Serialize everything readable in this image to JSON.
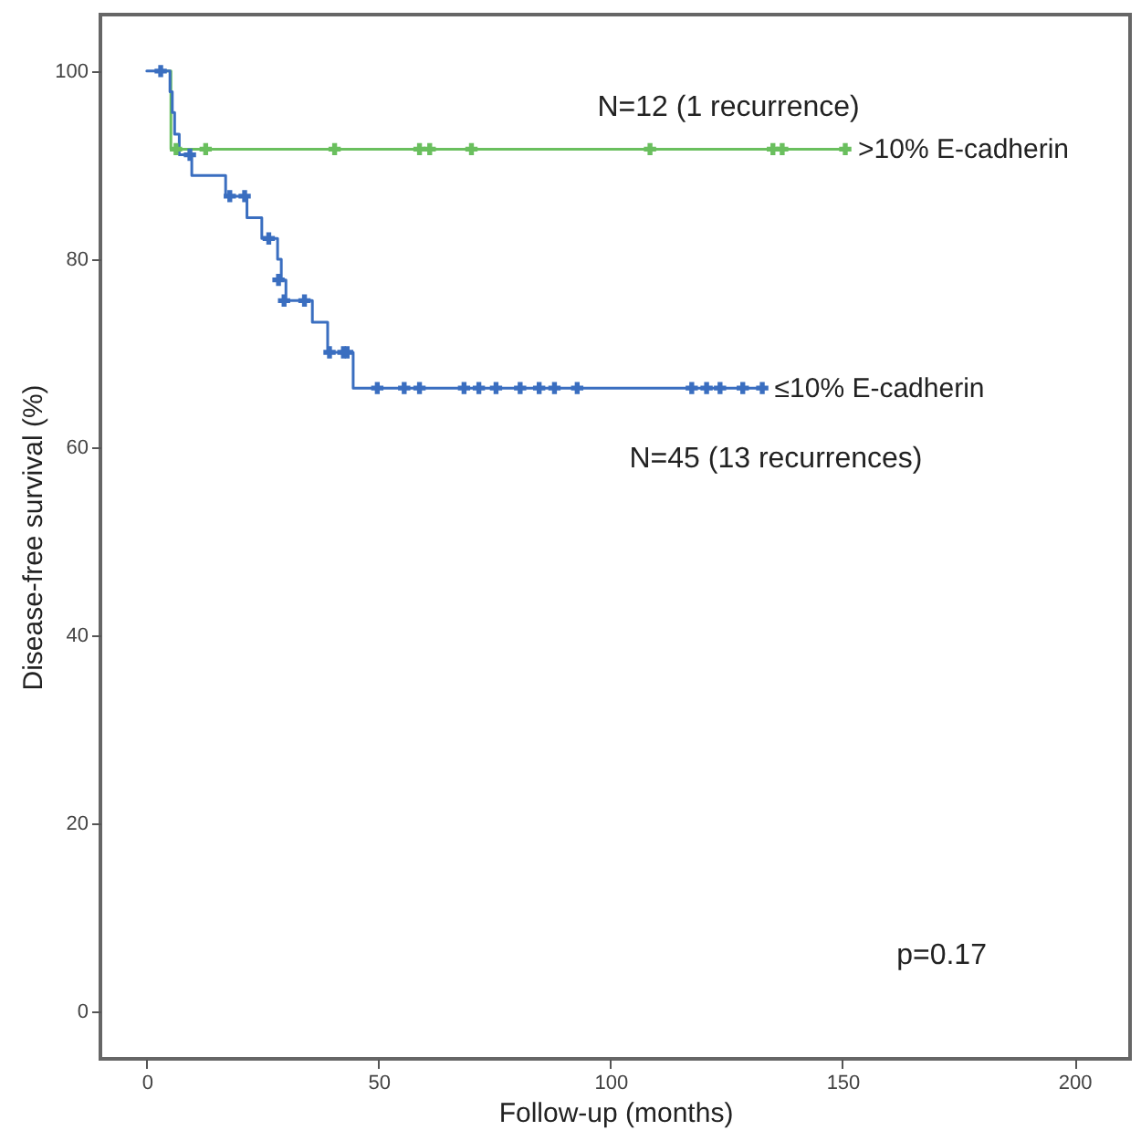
{
  "chart_data": {
    "type": "step",
    "xlabel": "Follow-up (months)",
    "ylabel": "Disease-free survival (%)",
    "xlim": [
      -10,
      212
    ],
    "ylim": [
      -5,
      106
    ],
    "xticks": [
      0,
      50,
      100,
      150,
      200
    ],
    "yticks": [
      0,
      20,
      40,
      60,
      80,
      100
    ],
    "grid": false,
    "series": [
      {
        "name": ">10% E-cadherin",
        "color": "#6abf5e",
        "marker": "none",
        "x": [
          3,
          5.2,
          151
        ],
        "values": [
          100,
          91.7,
          91.7
        ]
      },
      {
        "name": "≤10% E-cadherin",
        "color": "#3a6ec0",
        "marker": "none",
        "x": [
          0,
          5,
          5.5,
          6,
          7,
          9.7,
          17,
          21.6,
          24.8,
          28.2,
          29,
          30,
          35.7,
          39,
          44.5,
          133
        ],
        "values": [
          100,
          97.8,
          95.6,
          93.3,
          91.1,
          88.9,
          86.7,
          84.4,
          82.2,
          80,
          77.8,
          75.6,
          73.3,
          70.1,
          66.3,
          66.3
        ]
      },
      {
        "type": "scatter",
        "color": "#6abf5e",
        "marker": "cross",
        "x": [
          6.3,
          12.7,
          40.5,
          58.8,
          61,
          70,
          108.5,
          135,
          137,
          150.6
        ],
        "values": [
          91.7,
          91.7,
          91.7,
          91.7,
          91.7,
          91.7,
          91.7,
          91.7,
          91.7,
          91.7
        ]
      },
      {
        "type": "scatter",
        "color": "#3a6ec0",
        "marker": "cross",
        "x": [
          3,
          9.3,
          17.9,
          21.1,
          26.3,
          28.4,
          29.6,
          34,
          39.4,
          42.4,
          43.2,
          49.7,
          55.5,
          58.8,
          68.4,
          71.6,
          75.3,
          80.5,
          84.6,
          87.9,
          92.8,
          117.5,
          120.7,
          123.6,
          128.5,
          132.7
        ],
        "values": [
          100,
          91.1,
          86.7,
          86.7,
          82.2,
          77.8,
          75.6,
          75.6,
          70.1,
          70.1,
          70.1,
          66.3,
          66.3,
          66.3,
          66.3,
          66.3,
          66.3,
          66.3,
          66.3,
          66.3,
          66.3,
          66.3,
          66.3,
          66.3,
          66.3,
          66.3
        ]
      }
    ],
    "annotations": [
      "N=12 (1 recurrence)",
      "N=45 (13 recurrences)",
      "p=0.17"
    ]
  }
}
